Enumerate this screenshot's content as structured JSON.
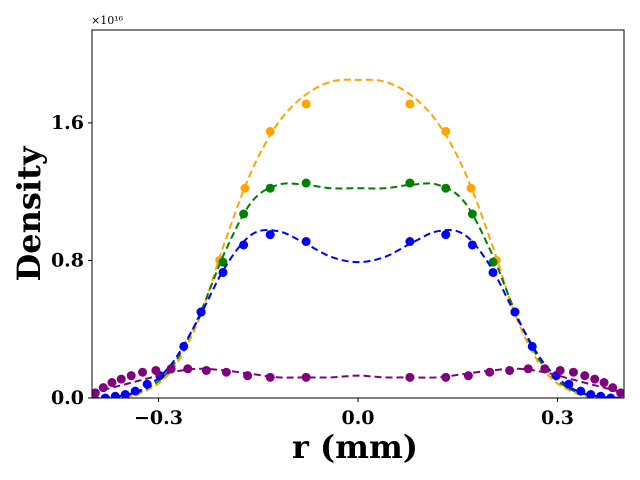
{
  "chart_data": {
    "type": "line",
    "title": "",
    "xlabel": "r (mm)",
    "ylabel": "Density",
    "y_multiplier": "×10¹⁶",
    "xlim": [
      -0.4,
      0.4
    ],
    "ylim": [
      0,
      2.14
    ],
    "grid": false,
    "xticks": [
      -0.3,
      0.0,
      0.3
    ],
    "xtick_labels": [
      "−0.3",
      "0.0",
      "0.3"
    ],
    "yticks": [
      0.0,
      0.8,
      1.6
    ],
    "ytick_labels": [
      "0.0",
      "0.8",
      "1.6"
    ],
    "series": [
      {
        "name": "orange",
        "color": "#FFA500",
        "points": {
          "x": [
            -0.236,
            -0.208,
            -0.17,
            -0.132,
            -0.078,
            0.078,
            0.132,
            0.17,
            0.208,
            0.236
          ],
          "y": [
            0.5,
            0.8,
            1.22,
            1.55,
            1.71,
            1.71,
            1.55,
            1.22,
            0.8,
            0.5
          ]
        },
        "curve": {
          "x": [
            -0.4,
            -0.36,
            -0.32,
            -0.28,
            -0.24,
            -0.2,
            -0.16,
            -0.12,
            -0.08,
            -0.04,
            0.0,
            0.04,
            0.08,
            0.12,
            0.16,
            0.2,
            0.24,
            0.28,
            0.32,
            0.36,
            0.4
          ],
          "y": [
            0.0,
            0.0,
            0.04,
            0.16,
            0.45,
            0.91,
            1.32,
            1.6,
            1.76,
            1.84,
            1.85,
            1.84,
            1.76,
            1.6,
            1.32,
            0.91,
            0.45,
            0.16,
            0.04,
            0.0,
            0.0
          ]
        }
      },
      {
        "name": "green",
        "color": "#008000",
        "points": {
          "x": [
            -0.236,
            -0.203,
            -0.172,
            -0.132,
            -0.078,
            0.078,
            0.132,
            0.172,
            0.203,
            0.236
          ],
          "y": [
            0.5,
            0.79,
            1.07,
            1.22,
            1.25,
            1.25,
            1.22,
            1.07,
            0.79,
            0.5
          ]
        },
        "curve": {
          "x": [
            -0.4,
            -0.36,
            -0.32,
            -0.28,
            -0.24,
            -0.2,
            -0.16,
            -0.12,
            -0.08,
            -0.04,
            0.0,
            0.04,
            0.08,
            0.12,
            0.16,
            0.2,
            0.24,
            0.28,
            0.32,
            0.36,
            0.4
          ],
          "y": [
            0.0,
            0.01,
            0.05,
            0.18,
            0.47,
            0.85,
            1.14,
            1.24,
            1.24,
            1.22,
            1.22,
            1.22,
            1.24,
            1.24,
            1.14,
            0.85,
            0.47,
            0.18,
            0.05,
            0.01,
            0.0
          ]
        }
      },
      {
        "name": "blue",
        "color": "#0000FF",
        "points": {
          "x": [
            -0.38,
            -0.365,
            -0.35,
            -0.335,
            -0.317,
            -0.298,
            -0.262,
            -0.236,
            -0.203,
            -0.172,
            -0.132,
            -0.078,
            0.078,
            0.132,
            0.172,
            0.203,
            0.236,
            0.262,
            0.298,
            0.317,
            0.335,
            0.35,
            0.365,
            0.38
          ],
          "y": [
            0.0,
            0.01,
            0.02,
            0.04,
            0.08,
            0.13,
            0.3,
            0.5,
            0.73,
            0.89,
            0.95,
            0.91,
            0.91,
            0.95,
            0.89,
            0.73,
            0.5,
            0.3,
            0.13,
            0.08,
            0.04,
            0.02,
            0.01,
            0.0
          ]
        },
        "curve": {
          "x": [
            -0.4,
            -0.36,
            -0.32,
            -0.28,
            -0.24,
            -0.2,
            -0.16,
            -0.12,
            -0.08,
            -0.04,
            0.0,
            0.04,
            0.08,
            0.12,
            0.16,
            0.2,
            0.24,
            0.28,
            0.32,
            0.36,
            0.4
          ],
          "y": [
            0.0,
            0.01,
            0.06,
            0.2,
            0.46,
            0.76,
            0.95,
            0.97,
            0.9,
            0.82,
            0.79,
            0.82,
            0.9,
            0.97,
            0.95,
            0.76,
            0.46,
            0.2,
            0.06,
            0.01,
            0.0
          ]
        }
      },
      {
        "name": "purple",
        "color": "#800080",
        "points": {
          "x": [
            -0.395,
            -0.383,
            -0.37,
            -0.356,
            -0.341,
            -0.324,
            -0.304,
            -0.281,
            -0.256,
            -0.228,
            -0.198,
            -0.166,
            -0.132,
            -0.078,
            0.078,
            0.132,
            0.166,
            0.198,
            0.228,
            0.256,
            0.281,
            0.304,
            0.324,
            0.341,
            0.356,
            0.37,
            0.383,
            0.395
          ],
          "y": [
            0.03,
            0.06,
            0.09,
            0.11,
            0.13,
            0.15,
            0.16,
            0.17,
            0.17,
            0.16,
            0.15,
            0.13,
            0.12,
            0.12,
            0.12,
            0.12,
            0.13,
            0.15,
            0.16,
            0.17,
            0.17,
            0.16,
            0.15,
            0.13,
            0.11,
            0.09,
            0.06,
            0.03
          ]
        },
        "curve": {
          "x": [
            -0.4,
            -0.36,
            -0.32,
            -0.28,
            -0.24,
            -0.2,
            -0.16,
            -0.12,
            -0.08,
            -0.04,
            0.0,
            0.04,
            0.08,
            0.12,
            0.16,
            0.2,
            0.24,
            0.28,
            0.32,
            0.36,
            0.4
          ],
          "y": [
            0.03,
            0.07,
            0.11,
            0.15,
            0.17,
            0.16,
            0.14,
            0.12,
            0.12,
            0.12,
            0.13,
            0.12,
            0.12,
            0.12,
            0.14,
            0.16,
            0.17,
            0.15,
            0.11,
            0.07,
            0.03
          ]
        }
      }
    ]
  }
}
